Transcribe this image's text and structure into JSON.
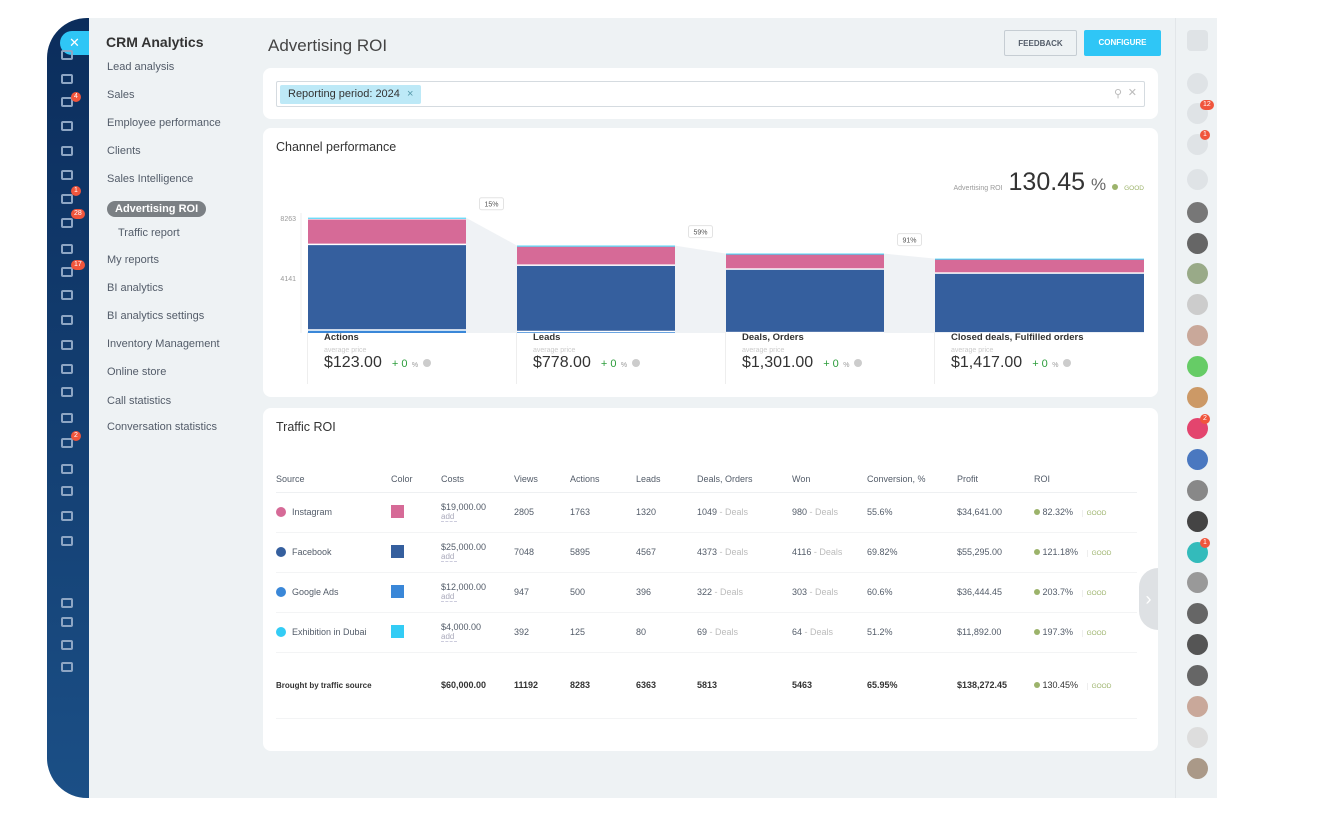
{
  "app": {
    "title": "CRM Analytics",
    "close_icon": "close-icon"
  },
  "left_badges": [
    "4",
    "1",
    "28",
    "17",
    "2"
  ],
  "menu": {
    "items": [
      "Lead analysis",
      "Sales",
      "Employee performance",
      "Clients",
      "Sales Intelligence",
      "Advertising ROI",
      "Traffic report",
      "My reports",
      "BI analytics",
      "BI analytics settings",
      "Inventory Management",
      "Online store",
      "Call statistics",
      "Conversation statistics"
    ],
    "active": "Advertising ROI"
  },
  "header": {
    "title": "Advertising ROI",
    "feedback": "FEEDBACK",
    "configure": "CONFIGURE"
  },
  "filter": {
    "tag": "Reporting period: 2024",
    "tag_remove": "×"
  },
  "channel": {
    "title": "Channel performance",
    "roi_label": "Advertising ROI",
    "roi_value": "130.45",
    "roi_unit": "%",
    "roi_status": "GOOD",
    "stages": [
      {
        "name": "Actions",
        "avg_label": "average price",
        "price": "$123.00",
        "change": "+ 0",
        "unit": "%"
      },
      {
        "name": "Leads",
        "avg_label": "average price",
        "price": "$778.00",
        "change": "+ 0",
        "unit": "%"
      },
      {
        "name": "Deals, Orders",
        "avg_label": "average price",
        "price": "$1,301.00",
        "change": "+ 0",
        "unit": "%"
      },
      {
        "name": "Closed deals, Fulfilled orders",
        "avg_label": "average price",
        "price": "$1,417.00",
        "change": "+ 0",
        "unit": "%"
      }
    ]
  },
  "chart_data": {
    "type": "bar",
    "stacked": true,
    "categories": [
      "Actions",
      "Leads",
      "Deals, Orders",
      "Closed deals, Fulfilled orders"
    ],
    "yticks": [
      "8263",
      "4141",
      "0"
    ],
    "ylim": [
      0,
      8263
    ],
    "series": [
      {
        "name": "Google Ads",
        "color": "#3a87d8",
        "values": [
          500,
          396,
          322,
          303
        ]
      },
      {
        "name": "Facebook",
        "color": "#355f9e",
        "values": [
          5895,
          4567,
          4373,
          4116
        ]
      },
      {
        "name": "Instagram",
        "color": "#d66a97",
        "values": [
          1763,
          1320,
          1049,
          980
        ]
      },
      {
        "name": "Exhibition in Dubai",
        "color": "#33ccf5",
        "values": [
          125,
          80,
          69,
          64
        ]
      }
    ],
    "conversions": [
      "15%",
      "59%",
      "91%"
    ]
  },
  "traffic": {
    "title": "Traffic ROI",
    "columns": [
      "Source",
      "Color",
      "Costs",
      "Views",
      "Actions",
      "Leads",
      "Deals, Orders",
      "Won",
      "Conversion, %",
      "Profit",
      "ROI"
    ],
    "add_label": "add",
    "deals_label": "- Deals",
    "good": "GOOD",
    "rows": [
      {
        "source": "Instagram",
        "icon_color": "#d66a97",
        "color": "#d66a97",
        "costs": "$19,000.00",
        "views": "2805",
        "actions": "1763",
        "leads": "1320",
        "deals": "1049",
        "won": "980",
        "conversion": "55.6%",
        "profit": "$34,641.00",
        "roi": "82.32%"
      },
      {
        "source": "Facebook",
        "icon_color": "#355f9e",
        "color": "#355f9e",
        "costs": "$25,000.00",
        "views": "7048",
        "actions": "5895",
        "leads": "4567",
        "deals": "4373",
        "won": "4116",
        "conversion": "69.82%",
        "profit": "$55,295.00",
        "roi": "121.18%"
      },
      {
        "source": "Google Ads",
        "icon_color": "#3a87d8",
        "color": "#3a87d8",
        "costs": "$12,000.00",
        "views": "947",
        "actions": "500",
        "leads": "396",
        "deals": "322",
        "won": "303",
        "conversion": "60.6%",
        "profit": "$36,444.45",
        "roi": "203.7%"
      },
      {
        "source": "Exhibition in Dubai",
        "icon_color": "#33ccf5",
        "color": "#33ccf5",
        "costs": "$4,000.00",
        "views": "392",
        "actions": "125",
        "leads": "80",
        "deals": "69",
        "won": "64",
        "conversion": "51.2%",
        "profit": "$11,892.00",
        "roi": "197.3%"
      }
    ],
    "total": {
      "source": "Brought by traffic source",
      "costs": "$60,000.00",
      "views": "11192",
      "actions": "8283",
      "leads": "6363",
      "deals": "5813",
      "won": "5463",
      "conversion": "65.95%",
      "profit": "$138,272.45",
      "roi": "130.45%"
    }
  },
  "right_badges": [
    "12",
    "1",
    "2",
    "1",
    "1"
  ]
}
